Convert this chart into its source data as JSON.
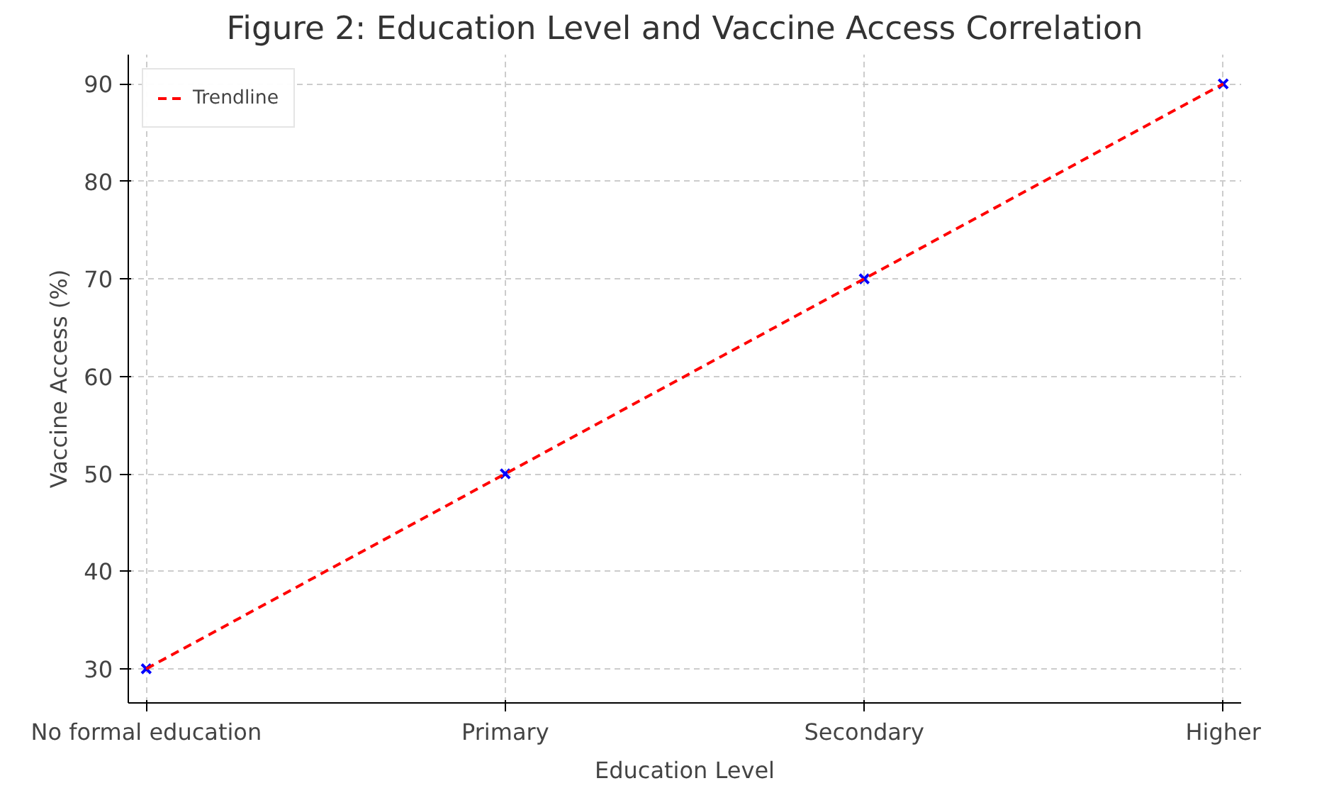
{
  "chart_data": {
    "type": "scatter",
    "title": "Figure 2: Education Level and Vaccine Access Correlation",
    "xlabel": "Education Level",
    "ylabel": "Vaccine Access (%)",
    "categories": [
      "No formal education",
      "Primary",
      "Secondary",
      "Higher"
    ],
    "series": [
      {
        "color": "#0000ff",
        "marker": "cross",
        "values": [
          30,
          50,
          70,
          90
        ]
      },
      {
        "type": "line",
        "name": "Trendline",
        "color": "#ff0000",
        "line_style": "dashed",
        "marker": "none",
        "values": [
          30,
          50,
          70,
          90
        ]
      }
    ],
    "ylim": [
      26.5,
      93
    ],
    "yticks": [
      30,
      40,
      50,
      60,
      70,
      80,
      90
    ],
    "grid": true,
    "legend": "top left"
  }
}
